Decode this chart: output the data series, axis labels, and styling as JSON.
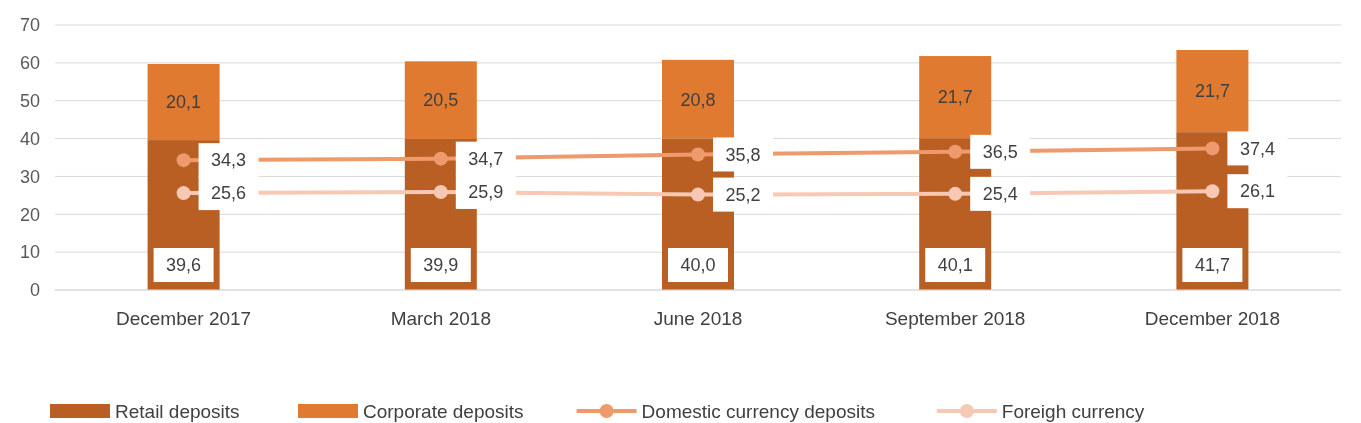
{
  "chart_data": {
    "type": "bar",
    "stacked": true,
    "categories": [
      "December 2017",
      "March 2018",
      "June 2018",
      "September 2018",
      "December 2018"
    ],
    "series": [
      {
        "name": "Retail deposits",
        "color": "#b95f24",
        "values": [
          39.6,
          39.9,
          40.0,
          40.1,
          41.7
        ],
        "value_labels": [
          "39,6",
          "39,9",
          "40,0",
          "40,1",
          "41,7"
        ]
      },
      {
        "name": "Corporate deposits",
        "color": "#e07a30",
        "values": [
          20.1,
          20.5,
          20.8,
          21.7,
          21.7
        ],
        "value_labels": [
          "20,1",
          "20,5",
          "20,8",
          "21,7",
          "21,7"
        ]
      },
      {
        "name": "Domestic currency deposits",
        "type": "line",
        "color": "#ee9a6c",
        "marker": "circle",
        "values": [
          34.3,
          34.7,
          35.8,
          36.5,
          37.4
        ],
        "value_labels": [
          "34,3",
          "34,7",
          "35,8",
          "36,5",
          "37,4"
        ]
      },
      {
        "name": "Foreigh currency",
        "type": "line",
        "color": "#f7c8b4",
        "marker": "circle",
        "values": [
          25.6,
          25.9,
          25.2,
          25.4,
          26.1
        ],
        "value_labels": [
          "25,6",
          "25,9",
          "25,2",
          "25,4",
          "26,1"
        ]
      }
    ],
    "ylim": [
      0,
      70
    ],
    "yticks": [
      0,
      10,
      20,
      30,
      40,
      50,
      60,
      70
    ],
    "grid": "y",
    "legend": "bottom"
  }
}
